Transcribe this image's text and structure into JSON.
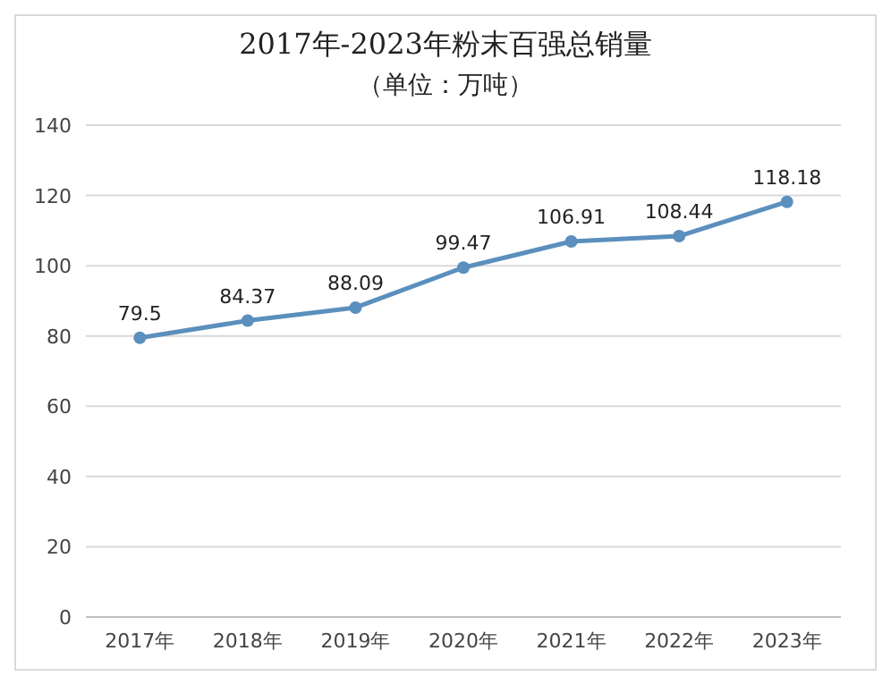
{
  "chart_data": {
    "type": "line",
    "title": "2017年-2023年粉末百强总销量",
    "subtitle": "（单位：万吨）",
    "categories": [
      "2017年",
      "2018年",
      "2019年",
      "2020年",
      "2021年",
      "2022年",
      "2023年"
    ],
    "series": [
      {
        "color": "#5b8fbd",
        "values": [
          79.5,
          84.37,
          88.09,
          99.47,
          106.91,
          108.44,
          118.18
        ]
      }
    ],
    "ylim": [
      0,
      140
    ],
    "yticks": [
      0,
      20,
      40,
      60,
      80,
      100,
      120,
      140
    ],
    "grid": "y",
    "marker": "circle",
    "data_labels": true
  }
}
